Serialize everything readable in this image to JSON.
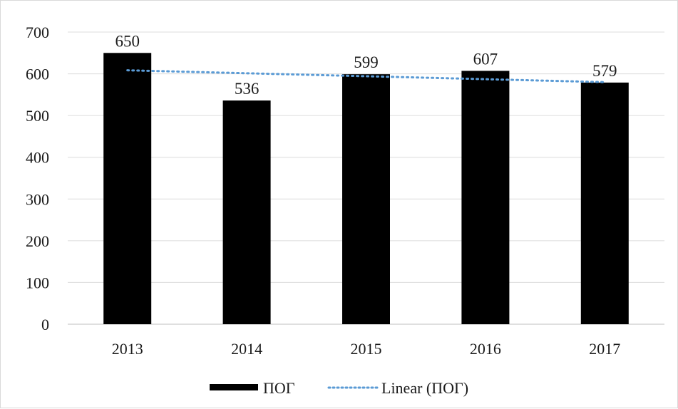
{
  "chart_data": {
    "type": "bar",
    "categories": [
      "2013",
      "2014",
      "2015",
      "2016",
      "2017"
    ],
    "series": [
      {
        "name": "ПОГ",
        "values": [
          650,
          536,
          599,
          607,
          579
        ],
        "color": "#000000"
      }
    ],
    "trendline": {
      "name": "Linear (ПОГ)",
      "type": "linear",
      "of_series": "ПОГ",
      "color": "#5b9bd5"
    },
    "ylim": [
      0,
      700
    ],
    "yticks": [
      0,
      100,
      200,
      300,
      400,
      500,
      600,
      700
    ],
    "grid": true,
    "data_labels": true,
    "legend_position": "bottom"
  }
}
